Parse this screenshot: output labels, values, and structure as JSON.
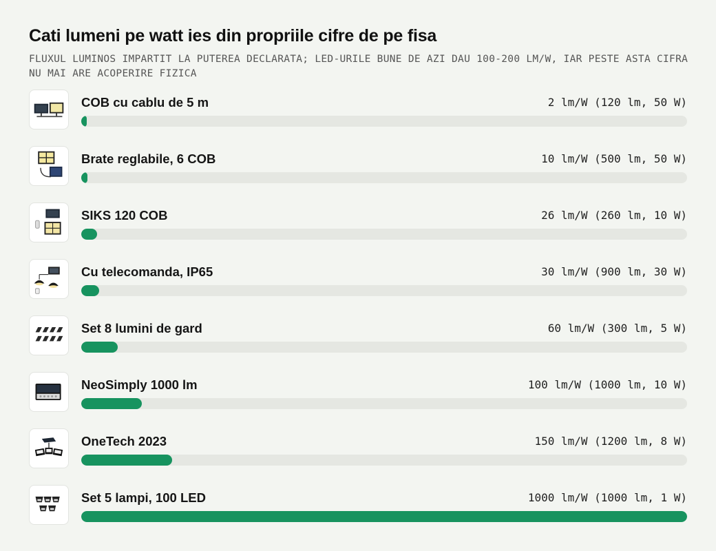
{
  "header": {
    "title": "Cati lumeni pe watt ies din propriile cifre de pe fisa",
    "subtitle": "FLUXUL LUMINOS IMPARTIT LA PUTEREA DECLARATA; LED-URILE BUNE DE AZI DAU 100-200 LM/W, IAR PESTE ASTA CIFRA NU MAI ARE ACOPERIRE FIZICA"
  },
  "colors": {
    "bar": "#17935f",
    "track": "#e5e7e2",
    "background": "#f3f5f1"
  },
  "chart_data": {
    "type": "bar",
    "orientation": "horizontal",
    "title": "Cati lumeni pe watt ies din propriile cifre de pe fisa",
    "subtitle": "FLUXUL LUMINOS IMPARTIT LA PUTEREA DECLARATA; LED-URILE BUNE DE AZI DAU 100-200 LM/W, IAR PESTE ASTA CIFRA NU MAI ARE ACOPERIRE FIZICA",
    "xlim": [
      0,
      1000
    ],
    "grid": false,
    "categories": [
      "COB cu cablu de 5 m",
      "Brate reglabile, 6 COB",
      "SIKS 120 COB",
      "Cu telecomanda, IP65",
      "Set 8 lumini de gard",
      "NeoSimply 1000 lm",
      "OneTech 2023",
      "Set 5 lampi, 100 LED"
    ],
    "values": [
      2,
      10,
      26,
      30,
      60,
      100,
      150,
      1000
    ],
    "labels": [
      "2 lm/W (120 lm, 50 W)",
      "10 lm/W (500 lm, 50 W)",
      "26 lm/W (260 lm, 10 W)",
      "30 lm/W (900 lm, 30 W)",
      "60 lm/W (300 lm, 5 W)",
      "100 lm/W (1000 lm, 10 W)",
      "150 lm/W (1200 lm, 8 W)",
      "1000 lm/W (1000 lm, 1 W)"
    ],
    "icons": [
      "dual-solar-panel-icon",
      "adjustable-arm-lamp-icon",
      "cob-flood-lamp-icon",
      "hanging-pendant-lamp-icon",
      "fence-lights-set-icon",
      "wall-lamp-icon",
      "three-head-lamp-icon",
      "five-lamp-set-icon"
    ]
  }
}
